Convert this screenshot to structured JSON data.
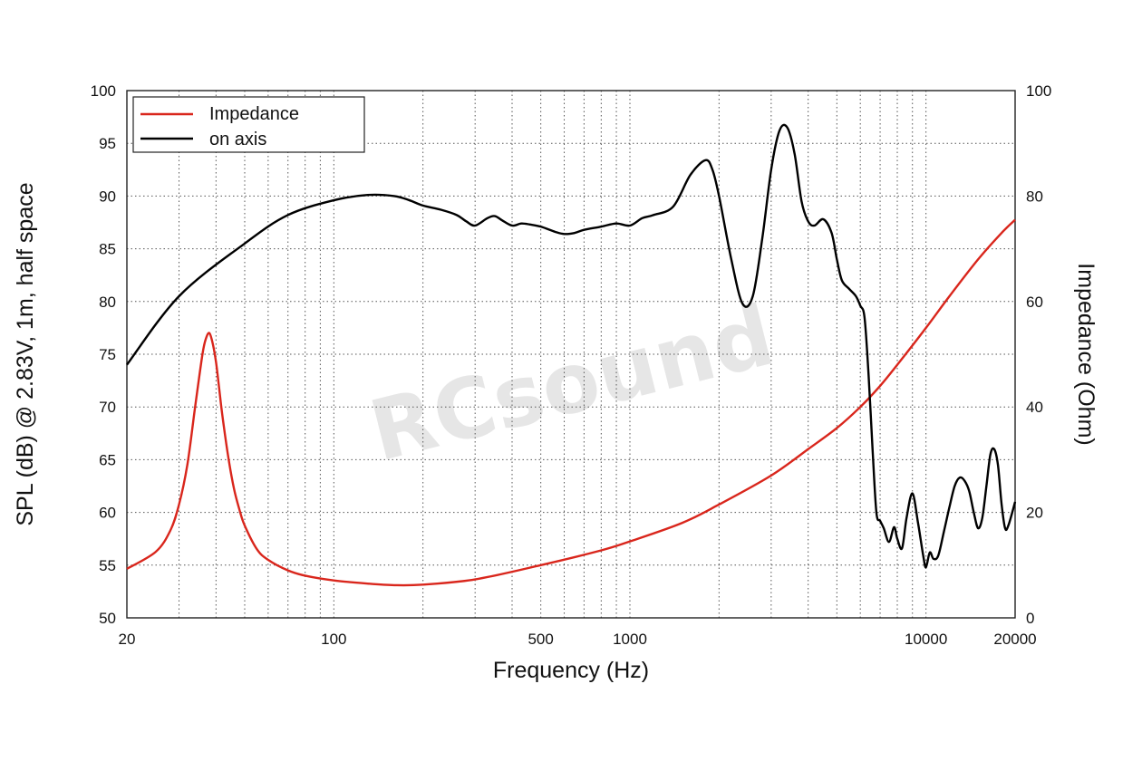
{
  "watermark": "RCsound",
  "chart_data": {
    "type": "line",
    "xlabel": "Frequency (Hz)",
    "ylabel": "SPL (dB) @ 2.83V, 1m, half space",
    "y2label": "Impedance (Ohm)",
    "xscale": "log",
    "xlim": [
      20,
      20000
    ],
    "ylim": [
      50,
      100
    ],
    "y2lim": [
      0,
      100
    ],
    "x_ticks": [
      20,
      100,
      500,
      1000,
      10000,
      20000
    ],
    "y_ticks": [
      50,
      55,
      60,
      65,
      70,
      75,
      80,
      85,
      90,
      95,
      100
    ],
    "y2_ticks": [
      0,
      20,
      40,
      60,
      80,
      100
    ],
    "grid": true,
    "legend_position": "top-left",
    "series": [
      {
        "name": "Impedance",
        "axis": "right",
        "color": "#d9261c",
        "x": [
          20,
          25,
          28,
          30,
          32,
          34,
          36,
          37,
          38,
          39,
          40,
          41,
          42,
          44,
          46,
          48,
          50,
          55,
          60,
          70,
          80,
          100,
          130,
          160,
          200,
          300,
          500,
          800,
          1000,
          1500,
          2000,
          3000,
          4000,
          5000,
          6000,
          7000,
          8000,
          10000,
          12000,
          15000,
          18000,
          20000
        ],
        "y": [
          9.3,
          12.5,
          16.5,
          21.5,
          29,
          40,
          50,
          53,
          54,
          52,
          48.5,
          43.5,
          38.5,
          30.5,
          24.5,
          20.5,
          17.5,
          13,
          11,
          9,
          8,
          7.1,
          6.5,
          6.2,
          6.3,
          7.3,
          10,
          12.8,
          14.5,
          18,
          21.5,
          27,
          32,
          36,
          40,
          44,
          48,
          55,
          61,
          68,
          73,
          75.5
        ]
      },
      {
        "name": "on axis",
        "axis": "left",
        "color": "#000000",
        "x": [
          20,
          30,
          50,
          70,
          100,
          130,
          160,
          180,
          200,
          230,
          260,
          280,
          300,
          330,
          350,
          370,
          400,
          430,
          460,
          500,
          560,
          600,
          650,
          700,
          800,
          900,
          1000,
          1100,
          1200,
          1400,
          1600,
          1800,
          1900,
          2000,
          2200,
          2400,
          2600,
          2800,
          3000,
          3200,
          3400,
          3600,
          3800,
          4000,
          4200,
          4500,
          4800,
          5000,
          5200,
          5500,
          5800,
          6000,
          6200,
          6400,
          6600,
          6800,
          7000,
          7200,
          7500,
          7800,
          8000,
          8300,
          8600,
          9000,
          9400,
          9800,
          10000,
          10300,
          10600,
          11000,
          11500,
          12000,
          12500,
          13000,
          13500,
          14000,
          14500,
          15000,
          15500,
          16000,
          16500,
          17000,
          17500,
          18000,
          18500,
          19000,
          20000
        ],
        "y": [
          74,
          80.5,
          85.5,
          88.2,
          89.6,
          90.1,
          90,
          89.6,
          89.1,
          88.7,
          88.2,
          87.6,
          87.2,
          87.9,
          88.1,
          87.7,
          87.2,
          87.4,
          87.3,
          87.1,
          86.6,
          86.4,
          86.5,
          86.8,
          87.1,
          87.4,
          87.2,
          87.9,
          88.2,
          89,
          92,
          93.4,
          92.5,
          90,
          84,
          79.8,
          80.5,
          86,
          92.5,
          96.2,
          96.5,
          94,
          89.5,
          87.6,
          87.2,
          87.8,
          86.5,
          84,
          82,
          81.2,
          80.5,
          79.6,
          78.5,
          73,
          66,
          60,
          59.2,
          58.5,
          57.2,
          58.6,
          57.5,
          56.6,
          59.5,
          61.8,
          59,
          55.8,
          54.8,
          56.2,
          55.6,
          55.9,
          58.2,
          60.5,
          62.5,
          63.3,
          63,
          62,
          60,
          58.5,
          59.5,
          62.5,
          65.5,
          66,
          64.5,
          60.8,
          58.5,
          58.8,
          61
        ]
      }
    ]
  }
}
